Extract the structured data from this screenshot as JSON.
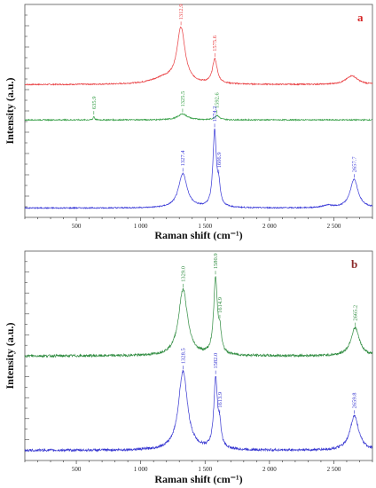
{
  "chart_data": [
    {
      "type": "line",
      "panel_label": "a",
      "panel_label_color": "#d62728",
      "xlabel": "Raman shift (cm⁻¹)",
      "ylabel": "Intensity (a.u.)",
      "xlim": [
        100,
        2800
      ],
      "xticks": [
        500,
        1000,
        1500,
        2000,
        2500
      ],
      "xtick_labels": [
        "500",
        "1 000",
        "1 500",
        "2 000",
        "2 500"
      ],
      "y_tick_labels_visible": false,
      "grid": false,
      "series": [
        {
          "color": "#e8383b",
          "offset": 0.615,
          "baseline": 0.03,
          "peaks": [
            {
              "x": 1312.9,
              "height": 0.28,
              "width": 38,
              "label": "1312.9"
            },
            {
              "x": 1575.6,
              "height": 0.125,
              "width": 22,
              "label": "1575.6"
            },
            {
              "x": 2640,
              "height": 0.045,
              "width": 55
            }
          ],
          "shoulder": [
            {
              "x": 1180,
              "height": 0.03,
              "width": 120
            }
          ]
        },
        {
          "color": "#2e9b3f",
          "offset": 0.465,
          "baseline": 0.0,
          "peaks": [
            {
              "x": 635.9,
              "height": 0.018,
              "width": 6,
              "label": "635.9"
            },
            {
              "x": 1325.5,
              "height": 0.03,
              "width": 45,
              "label": "1325.5"
            },
            {
              "x": 1592.6,
              "height": 0.022,
              "width": 22,
              "label": "1592.6"
            }
          ]
        },
        {
          "color": "#3535d6",
          "offset": 0.0,
          "baseline": 0.015,
          "peaks": [
            {
              "x": 1327.4,
              "height": 0.175,
              "width": 40,
              "label": "1327.4"
            },
            {
              "x": 1574.2,
              "height": 0.385,
              "width": 16,
              "label": "1574.2"
            },
            {
              "x": 1606.9,
              "height": 0.09,
              "width": 14,
              "label": "1606.9"
            },
            {
              "x": 2657.7,
              "height": 0.145,
              "width": 38,
              "label": "2657.7"
            },
            {
              "x": 2450,
              "height": 0.012,
              "width": 45
            }
          ]
        }
      ]
    },
    {
      "type": "line",
      "panel_label": "b",
      "panel_label_color": "#8b2a2a",
      "xlabel": "Raman shift (cm⁻¹)",
      "ylabel": "Intensity (a.u.)",
      "xlim": [
        100,
        2800
      ],
      "xticks": [
        500,
        1000,
        1500,
        2000,
        2500
      ],
      "xtick_labels": [
        "500",
        "1 000",
        "1 500",
        "2 000",
        "2 500"
      ],
      "y_tick_labels_visible": false,
      "grid": false,
      "series": [
        {
          "color": "#2e8b3f",
          "offset": 0.48,
          "baseline": 0.03,
          "peaks": [
            {
              "x": 1329.0,
              "height": 0.345,
              "width": 42,
              "label": "1329.0"
            },
            {
              "x": 1580.9,
              "height": 0.39,
              "width": 17,
              "label": "1580.9"
            },
            {
              "x": 1614.9,
              "height": 0.1,
              "width": 14,
              "label": "1614.9"
            },
            {
              "x": 2665.2,
              "height": 0.145,
              "width": 40,
              "label": "2665.2"
            }
          ]
        },
        {
          "color": "#3434d0",
          "offset": 0.0,
          "baseline": 0.02,
          "peaks": [
            {
              "x": 1328.5,
              "height": 0.41,
              "width": 42,
              "label": "1328.5"
            },
            {
              "x": 1582.0,
              "height": 0.36,
              "width": 17,
              "label": "1582.0"
            },
            {
              "x": 1613.9,
              "height": 0.095,
              "width": 14,
              "label": "1613.9"
            },
            {
              "x": 2659.8,
              "height": 0.18,
              "width": 40,
              "label": "2659.8"
            }
          ]
        }
      ]
    }
  ]
}
